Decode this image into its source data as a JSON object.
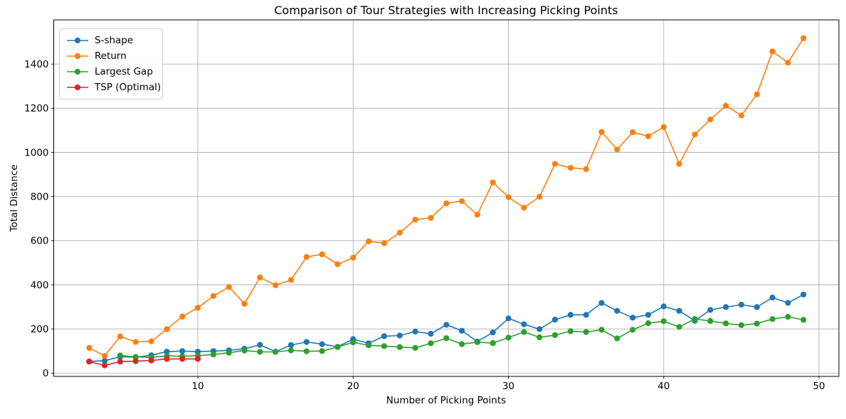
{
  "chart_data": {
    "type": "line",
    "title": "Comparison of Tour Strategies with Increasing Picking Points",
    "xlabel": "Number of Picking Points",
    "ylabel": "Total Distance",
    "x": [
      3,
      4,
      5,
      6,
      7,
      8,
      9,
      10,
      11,
      12,
      13,
      14,
      15,
      16,
      17,
      18,
      19,
      20,
      21,
      22,
      23,
      24,
      25,
      26,
      27,
      28,
      29,
      30,
      31,
      32,
      33,
      34,
      35,
      36,
      37,
      38,
      39,
      40,
      41,
      42,
      43,
      44,
      45,
      46,
      47,
      48,
      49
    ],
    "series": [
      {
        "name": "S-shape",
        "color": "#1f77b4",
        "values": [
          53,
          56,
          74,
          72,
          81,
          97,
          100,
          97,
          100,
          103,
          110,
          128,
          97,
          127,
          141,
          131,
          119,
          154,
          135,
          167,
          170,
          188,
          178,
          219,
          192,
          143,
          184,
          248,
          221,
          199,
          242,
          264,
          264,
          318,
          282,
          251,
          264,
          302,
          282,
          237,
          286,
          299,
          310,
          299,
          342,
          318,
          356
        ]
      },
      {
        "name": "Return",
        "color": "#ff7f0e",
        "values": [
          114,
          78,
          166,
          141,
          144,
          199,
          256,
          296,
          349,
          390,
          314,
          433,
          398,
          422,
          526,
          538,
          493,
          523,
          597,
          588,
          636,
          695,
          703,
          769,
          779,
          718,
          864,
          797,
          749,
          799,
          948,
          930,
          924,
          1092,
          1013,
          1091,
          1073,
          1115,
          948,
          1081,
          1149,
          1211,
          1167,
          1263,
          1457,
          1406,
          1517
        ]
      },
      {
        "name": "Largest Gap",
        "color": "#2ca02c",
        "values": [
          null,
          null,
          80,
          73,
          71,
          78,
          76,
          79,
          84,
          92,
          102,
          96,
          96,
          103,
          99,
          100,
          118,
          139,
          126,
          122,
          118,
          114,
          135,
          158,
          131,
          140,
          136,
          161,
          186,
          162,
          172,
          190,
          186,
          196,
          157,
          196,
          226,
          235,
          209,
          245,
          236,
          225,
          217,
          224,
          245,
          255,
          241
        ]
      },
      {
        "name": "TSP (Optimal)",
        "color": "#d62728",
        "values": [
          52,
          35,
          52,
          54,
          57,
          64,
          64,
          64,
          null,
          null,
          null,
          null,
          null,
          null,
          null,
          null,
          null,
          null,
          null,
          null,
          null,
          null,
          null,
          null,
          null,
          null,
          null,
          null,
          null,
          null,
          null,
          null,
          null,
          null,
          null,
          null,
          null,
          null,
          null,
          null,
          null,
          null,
          null,
          null,
          null,
          null,
          null
        ]
      }
    ],
    "xticks": [
      10,
      20,
      30,
      40,
      50
    ],
    "yticks": [
      0,
      200,
      400,
      600,
      800,
      1000,
      1200,
      1400
    ],
    "xlim": [
      0.72,
      51.28
    ],
    "ylim": [
      -15,
      1600
    ],
    "grid": true,
    "legend_position": "upper left"
  },
  "colors": {
    "background": "#ffffff",
    "grid": "#b0b0b0",
    "spine": "#000000",
    "text": "#000000"
  }
}
